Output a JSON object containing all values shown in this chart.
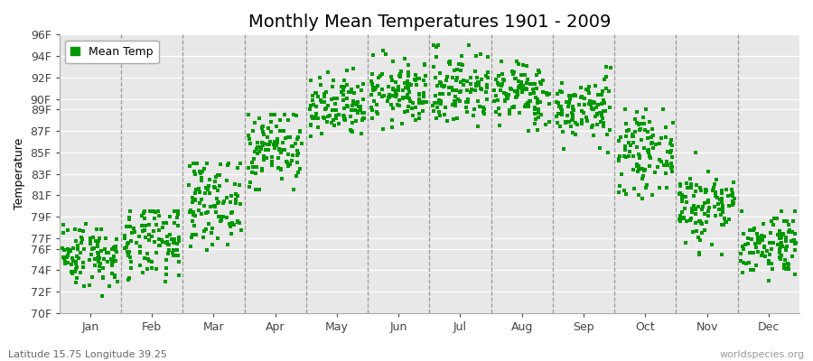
{
  "title": "Monthly Mean Temperatures 1901 - 2009",
  "ylabel": "Temperature",
  "ytick_labels": [
    "70F",
    "72F",
    "74F",
    "76F",
    "77F",
    "79F",
    "81F",
    "83F",
    "85F",
    "87F",
    "89F",
    "90F",
    "92F",
    "94F",
    "96F"
  ],
  "ytick_values": [
    70,
    72,
    74,
    76,
    77,
    79,
    81,
    83,
    85,
    87,
    89,
    90,
    92,
    94,
    96
  ],
  "ylim": [
    70,
    96
  ],
  "months": [
    "Jan",
    "Feb",
    "Mar",
    "Apr",
    "May",
    "Jun",
    "Jul",
    "Aug",
    "Sep",
    "Oct",
    "Nov",
    "Dec"
  ],
  "month_means": [
    75.5,
    76.5,
    80.5,
    85.5,
    89.0,
    90.5,
    91.0,
    90.5,
    89.0,
    85.0,
    80.0,
    76.5
  ],
  "month_stds": [
    1.5,
    1.8,
    2.0,
    1.8,
    1.5,
    1.5,
    1.8,
    1.5,
    1.5,
    1.8,
    1.8,
    1.5
  ],
  "month_mins": [
    71.0,
    70.5,
    74.5,
    81.5,
    85.5,
    86.5,
    86.5,
    87.0,
    85.0,
    80.5,
    75.5,
    73.0
  ],
  "month_maxs": [
    78.5,
    79.5,
    84.0,
    88.5,
    93.5,
    94.5,
    95.0,
    93.5,
    93.0,
    89.0,
    85.5,
    79.5
  ],
  "n_years": 109,
  "dot_color": "#009900",
  "dot_size": 7,
  "background_color": "#ffffff",
  "plot_bg": "#e8e8e8",
  "grid_line_color": "#ffffff",
  "dashed_line_color": "#999999",
  "title_fontsize": 14,
  "axis_label_fontsize": 9,
  "tick_fontsize": 9,
  "legend_label": "Mean Temp",
  "bottom_left_text": "Latitude 15.75 Longitude 39.25",
  "bottom_right_text": "worldspecies.org",
  "random_seed": 42
}
